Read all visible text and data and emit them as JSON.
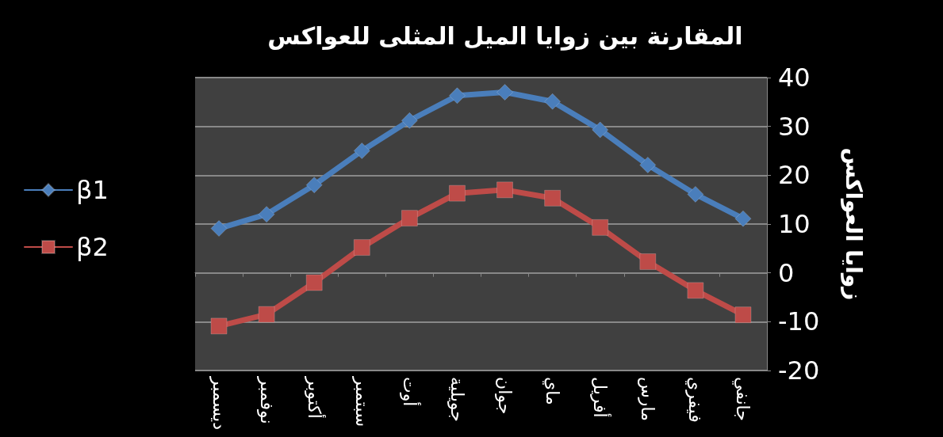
{
  "chart_data": {
    "type": "line",
    "title": "المقارنة بين زوايا الميل المثلى للعواكس",
    "ylabel": "زوايا العواكس",
    "categories": [
      "ديسمبر",
      "نوفمبر",
      "أكتوبر",
      "سبتمبر",
      "أوت",
      "جويلية",
      "جوان",
      "ماي",
      "أفريل",
      "مارس",
      "فيفري",
      "جانفي"
    ],
    "series": [
      {
        "name": "β1",
        "color": "#4a7ebb",
        "marker": "diamond",
        "values": [
          9.1,
          12,
          18,
          25,
          31.2,
          36.3,
          37,
          35.1,
          29.3,
          22.1,
          16.1,
          11.1
        ]
      },
      {
        "name": "β2",
        "color": "#be4b48",
        "marker": "square",
        "values": [
          -10.9,
          -8.5,
          -2,
          5.2,
          11.2,
          16.3,
          17,
          15.3,
          9.3,
          2.3,
          -3.6,
          -8.6
        ]
      }
    ],
    "ylim": [
      -20,
      40
    ],
    "yticks": [
      -20,
      -10,
      0,
      10,
      20,
      30,
      40
    ],
    "grid": "y",
    "legend": "left"
  }
}
